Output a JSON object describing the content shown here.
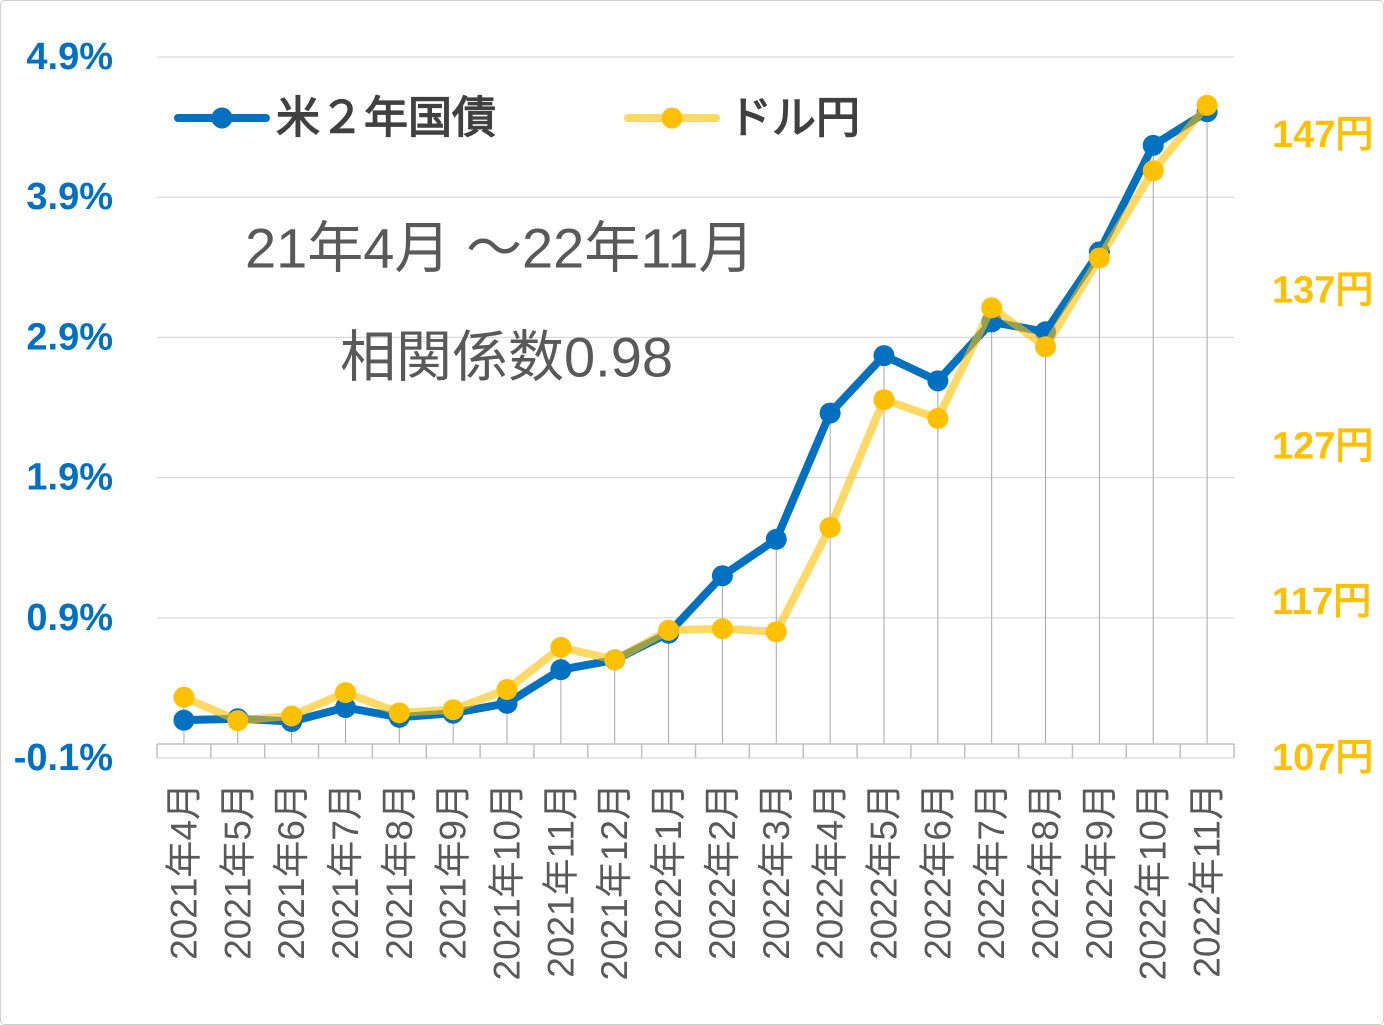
{
  "chart_data": {
    "type": "line",
    "categories": [
      "2021年4月",
      "2021年5月",
      "2021年6月",
      "2021年7月",
      "2021年8月",
      "2021年9月",
      "2021年10月",
      "2021年11月",
      "2021年12月",
      "2022年1月",
      "2022年2月",
      "2022年3月",
      "2022年4月",
      "2022年5月",
      "2022年6月",
      "2022年7月",
      "2022年8月",
      "2022年9月",
      "2022年10月",
      "2022年11月"
    ],
    "series": [
      {
        "name": "米２年国債",
        "axis": "left",
        "color": "#0070C0",
        "values": [
          0.17,
          0.18,
          0.16,
          0.26,
          0.19,
          0.22,
          0.29,
          0.53,
          0.6,
          0.79,
          1.2,
          1.46,
          2.36,
          2.77,
          2.59,
          3.01,
          2.94,
          3.51,
          4.27,
          4.51
        ]
      },
      {
        "name": "ドル円",
        "axis": "right",
        "color": "#FFC000",
        "values": [
          110.9,
          109.4,
          109.7,
          111.2,
          109.9,
          110.1,
          111.4,
          114.1,
          113.3,
          115.2,
          115.3,
          115.1,
          121.8,
          130.0,
          128.8,
          135.9,
          133.4,
          139.1,
          144.7,
          148.9
        ]
      }
    ],
    "y_left": {
      "ylim": [
        -0.1,
        4.9
      ],
      "color": "#0070C0",
      "ticks": [
        {
          "value": -0.1,
          "label": "-0.1%"
        },
        {
          "value": 0.9,
          "label": "0.9%"
        },
        {
          "value": 1.9,
          "label": "1.9%"
        },
        {
          "value": 2.9,
          "label": "2.9%"
        },
        {
          "value": 3.9,
          "label": "3.9%"
        },
        {
          "value": 4.9,
          "label": "4.9%"
        }
      ]
    },
    "y_right": {
      "ylim": [
        107,
        152
      ],
      "color": "#FFC000",
      "ticks": [
        {
          "value": 107,
          "label": "107円"
        },
        {
          "value": 117,
          "label": "117円"
        },
        {
          "value": 127,
          "label": "127円"
        },
        {
          "value": 137,
          "label": "137円"
        },
        {
          "value": 147,
          "label": "147円"
        }
      ]
    },
    "x_axis_crosses_at": 0,
    "annotations": [
      "21年4月 ～22年11月",
      "相関係数0.98"
    ],
    "legend": "top-left",
    "grid": true,
    "drop_lines": true,
    "text_color": "#595959",
    "legend_text_color": "#404040"
  }
}
